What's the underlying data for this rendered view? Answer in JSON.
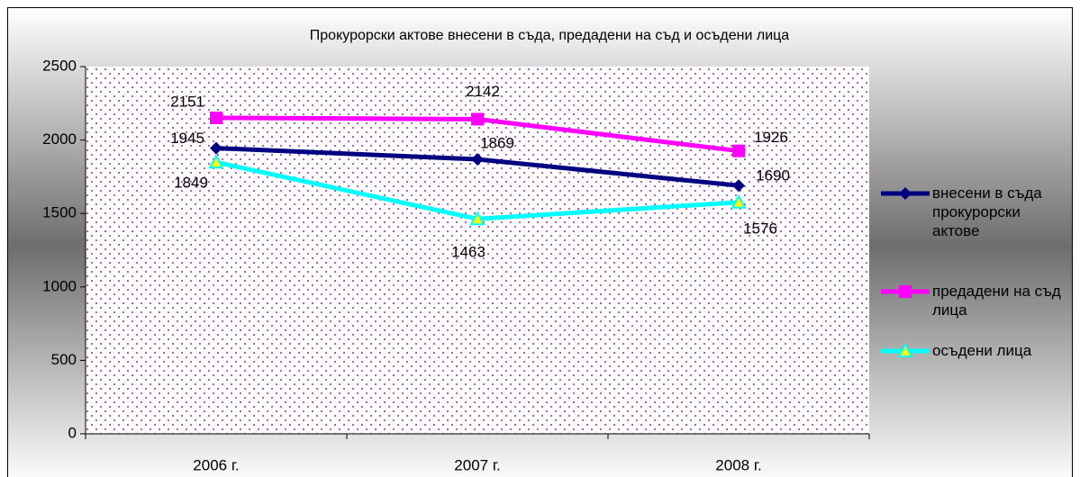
{
  "chart_data": {
    "type": "line",
    "title": "Прокурорски актове внесени в съда, предадени на съд и осъдени лица",
    "categories": [
      "2006 г.",
      "2007 г.",
      "2008 г."
    ],
    "series": [
      {
        "name": "внесени в съда прокурорски актове",
        "color": "#000080",
        "marker": "diamond",
        "values": [
          1945,
          1869,
          1690
        ]
      },
      {
        "name": "предадени на съд лица",
        "color": "#ff00ff",
        "marker": "square",
        "values": [
          2151,
          2142,
          1926
        ]
      },
      {
        "name": "осъдени лица",
        "color": "#00ffff",
        "marker": "triangle",
        "values": [
          1849,
          1463,
          1576
        ]
      }
    ],
    "ylim": [
      0,
      2500
    ],
    "yticks": [
      0,
      500,
      1000,
      1500,
      2000,
      2500
    ],
    "legend": "right"
  }
}
